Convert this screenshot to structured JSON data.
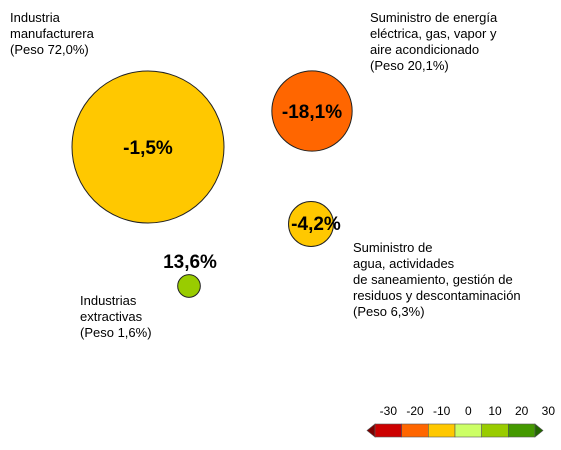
{
  "chart_data": {
    "type": "bubble",
    "bubbles": [
      {
        "name_lines": [
          "Industria",
          "manufacturera"
        ],
        "weight_label": "(Peso 72,0%)",
        "weight": 72.0,
        "value": -1.5,
        "value_label": "-1,5%",
        "color": "#ffc800"
      },
      {
        "name_lines": [
          "Suministro de energía",
          "eléctrica, gas, vapor y",
          "aire acondicionado"
        ],
        "weight_label": "(Peso 20,1%)",
        "weight": 20.1,
        "value": -18.1,
        "value_label": "-18,1%",
        "color": "#ff6600"
      },
      {
        "name_lines": [
          "Suministro de",
          "agua, actividades",
          "de saneamiento, gestión de",
          "residuos y descontaminación"
        ],
        "weight_label": "(Peso 6,3%)",
        "weight": 6.3,
        "value": -4.2,
        "value_label": "-4,2%",
        "color": "#ffc800"
      },
      {
        "name_lines": [
          "Industrias",
          "extractivas"
        ],
        "weight_label": "(Peso  1,6%)",
        "weight": 1.6,
        "value": 13.6,
        "value_label": "13,6%",
        "color": "#99cc00"
      }
    ],
    "color_scale": {
      "ticks": [
        "-30",
        "-20",
        "-10",
        "0",
        "10",
        "20",
        "30"
      ],
      "colors": [
        "#7a0000",
        "#cc0000",
        "#ff6600",
        "#ffc800",
        "#ccff66",
        "#99cc00",
        "#449900",
        "#226600"
      ]
    }
  }
}
